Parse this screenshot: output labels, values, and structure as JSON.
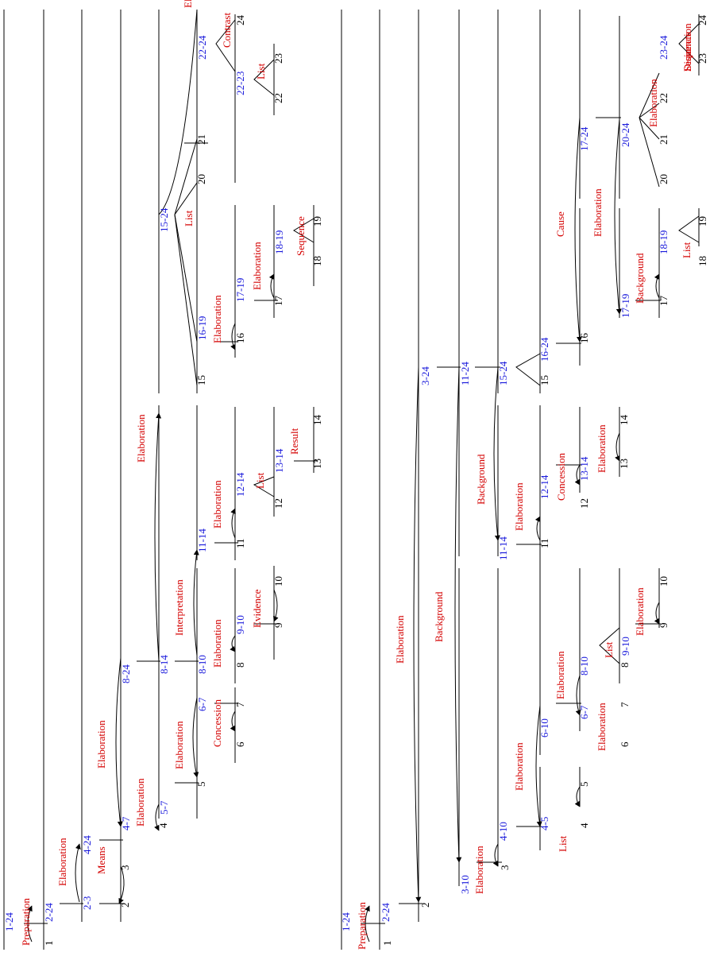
{
  "colors": {
    "relation": "#d40000",
    "span": "#1a1adb",
    "leaf": "#000000",
    "line": "#000000"
  },
  "trees": [
    {
      "id": "tree-1",
      "spans": [
        "1-24",
        "2-24",
        "2-3",
        "4-24",
        "4-7",
        "8-24",
        "5-7",
        "8-14",
        "6-7",
        "8-10",
        "15-24",
        "11-14",
        "9-10",
        "16-19",
        "12-14",
        "17-19",
        "13-14",
        "18-19",
        "22-24",
        "22-23"
      ],
      "relations": [
        "Preparation",
        "Elaboration",
        "Means",
        "Elaboration",
        "Elaboration",
        "Elaboration",
        "Elaboration",
        "Concession",
        "Interpretation",
        "Elaboration",
        "Elaboration",
        "Elaboration",
        "Evidence",
        "Elaboration",
        "List",
        "List",
        "Result",
        "Elaboration",
        "Sequence",
        "List",
        "Contrast"
      ],
      "leaves": [
        "1",
        "2",
        "3",
        "4",
        "5",
        "6",
        "7",
        "8",
        "9",
        "10",
        "11",
        "12",
        "13",
        "14",
        "15",
        "16",
        "17",
        "18",
        "19",
        "20",
        "21",
        "22",
        "23",
        "24"
      ]
    },
    {
      "id": "tree-2",
      "spans": [
        "1-24",
        "2-24",
        "3-24",
        "3-10",
        "11-24",
        "4-10",
        "11-14",
        "15-24",
        "4-5",
        "6-10",
        "12-14",
        "16-24",
        "6-7",
        "8-10",
        "13-14",
        "17-24",
        "9-10",
        "17-19",
        "20-24",
        "18-19",
        "23-24"
      ],
      "relations": [
        "Preparation",
        "Elaboration",
        "Background",
        "Elaboration",
        "Background",
        "Elaboration",
        "Elaboration",
        "Elaboration",
        "List",
        "Elaboration",
        "Concession",
        "Cause",
        "Elaboration",
        "List",
        "Elaboration",
        "Elaboration",
        "Background",
        "Elaboration",
        "List",
        "Sequence",
        "Disjunction"
      ],
      "leaves": [
        "1",
        "2",
        "3",
        "4",
        "5",
        "6",
        "7",
        "8",
        "9",
        "10",
        "11",
        "12",
        "13",
        "14",
        "15",
        "16",
        "17",
        "18",
        "19",
        "20",
        "21",
        "22",
        "23",
        "24"
      ]
    }
  ]
}
